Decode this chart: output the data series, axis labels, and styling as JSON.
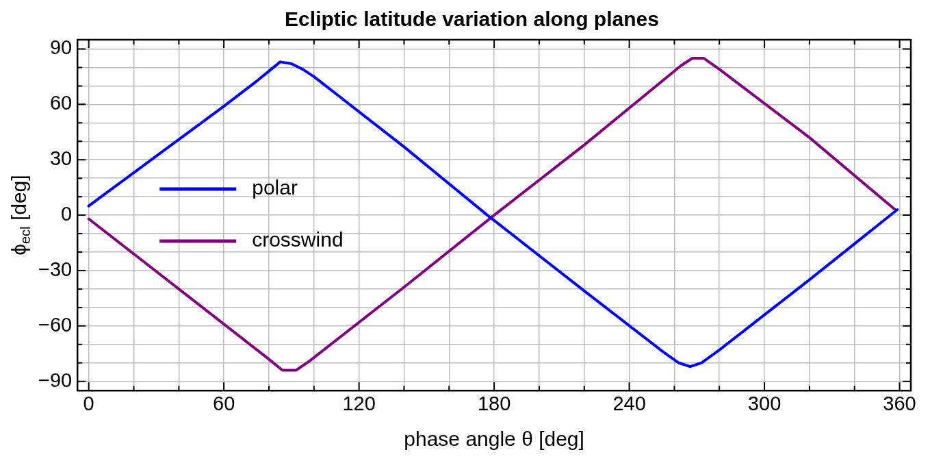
{
  "chart_data": {
    "type": "line",
    "title": "Ecliptic latitude variation along planes",
    "xlabel": "phase angle θ [deg]",
    "ylabel": "ϕ$_{ecl}$ [deg]",
    "xlim": [
      -5,
      365
    ],
    "ylim": [
      -95,
      95
    ],
    "xticks": [
      0,
      {
        "value": 20,
        "label": null
      },
      {
        "value": 40,
        "label": null
      },
      60,
      {
        "value": 80,
        "label": null
      },
      {
        "value": 100,
        "label": null
      },
      120,
      {
        "value": 140,
        "label": null
      },
      {
        "value": 160,
        "label": null
      },
      180,
      {
        "value": 200,
        "label": null
      },
      {
        "value": 220,
        "label": null
      },
      240,
      {
        "value": 260,
        "label": null
      },
      {
        "value": 280,
        "label": null
      },
      300,
      {
        "value": 320,
        "label": null
      },
      {
        "value": 340,
        "label": null
      },
      360
    ],
    "yticks": [
      -90,
      {
        "value": -80,
        "label": null
      },
      {
        "value": -70,
        "label": null
      },
      -60,
      {
        "value": -50,
        "label": null
      },
      {
        "value": -40,
        "label": null
      },
      -30,
      {
        "value": -20,
        "label": null
      },
      {
        "value": -10,
        "label": null
      },
      0,
      {
        "value": 10,
        "label": null
      },
      {
        "value": 20,
        "label": null
      },
      30,
      {
        "value": 40,
        "label": null
      },
      {
        "value": 50,
        "label": null
      },
      60,
      {
        "value": 70,
        "label": null
      },
      {
        "value": 80,
        "label": null
      },
      90
    ],
    "grid": true,
    "legend": "left",
    "marker": "none",
    "line_style": "solid",
    "series": [
      {
        "name": "polar",
        "color": "#0000ff",
        "x": [
          0,
          20,
          40,
          60,
          75,
          80,
          85,
          90,
          95,
          100,
          140,
          177,
          220,
          255,
          262,
          267,
          272,
          280,
          320,
          359
        ],
        "values": [
          5,
          23,
          41,
          59,
          73,
          78,
          83,
          82,
          79,
          75,
          37,
          0,
          -41,
          -74,
          -80,
          -82,
          -80,
          -73,
          -35,
          3
        ]
      },
      {
        "name": "crosswind",
        "color": "#800080",
        "x": [
          0,
          40,
          80,
          86,
          92,
          98,
          140,
          180,
          220,
          255,
          263,
          268,
          273,
          280,
          320,
          358
        ],
        "values": [
          -2,
          -40,
          -78,
          -84,
          -84,
          -79,
          -39,
          0,
          38,
          73,
          81,
          85,
          85,
          79,
          42,
          3
        ]
      }
    ]
  }
}
